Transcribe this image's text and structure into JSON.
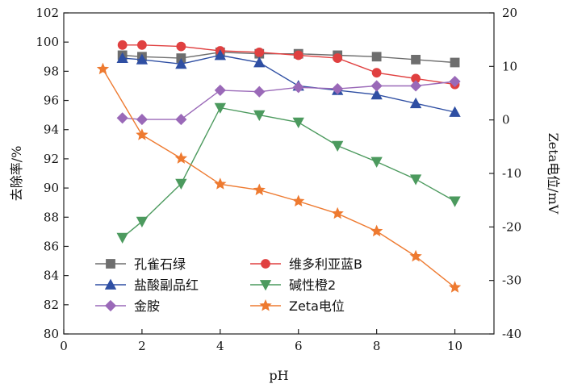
{
  "chart_data": {
    "type": "line",
    "title": "",
    "xlabel": "pH",
    "ylabel": "去除率/%",
    "y2label": "Zeta电位/mV",
    "xlim": [
      0,
      11
    ],
    "ylim": [
      80,
      102
    ],
    "y2lim": [
      -40,
      20
    ],
    "xticks": [
      "0",
      "2",
      "4",
      "6",
      "8",
      "10"
    ],
    "yticks": [
      "80",
      "82",
      "84",
      "86",
      "88",
      "90",
      "92",
      "94",
      "96",
      "98",
      "100",
      "102"
    ],
    "y2ticks": [
      "-40",
      "-30",
      "-20",
      "-10",
      "0",
      "10",
      "20"
    ],
    "grid": false,
    "legend_position": "lower-left",
    "series": [
      {
        "name": "孔雀石绿",
        "axis": "left",
        "color": "#6e6e6e",
        "marker": "square",
        "x": [
          1.5,
          2,
          3,
          4,
          5,
          6,
          7,
          8,
          9,
          10
        ],
        "y": [
          99.1,
          99.0,
          98.9,
          99.3,
          99.2,
          99.2,
          99.1,
          99.0,
          98.8,
          98.6
        ]
      },
      {
        "name": "维多利亚蓝B",
        "axis": "left",
        "color": "#e04040",
        "marker": "circle",
        "x": [
          1.5,
          2,
          3,
          4,
          5,
          6,
          7,
          8,
          9,
          10
        ],
        "y": [
          99.8,
          99.8,
          99.7,
          99.4,
          99.3,
          99.1,
          98.9,
          97.9,
          97.5,
          97.1
        ]
      },
      {
        "name": "盐酸副品红",
        "axis": "left",
        "color": "#2f4fa3",
        "marker": "triangle-up",
        "x": [
          1.5,
          2,
          3,
          4,
          5,
          6,
          7,
          8,
          9,
          10
        ],
        "y": [
          98.9,
          98.8,
          98.5,
          99.1,
          98.6,
          97.0,
          96.7,
          96.4,
          95.8,
          95.2
        ]
      },
      {
        "name": "碱性橙2",
        "axis": "left",
        "color": "#4c9a5e",
        "marker": "triangle-down",
        "x": [
          1.5,
          2,
          3,
          4,
          5,
          6,
          7,
          8,
          9,
          10
        ],
        "y": [
          86.6,
          87.7,
          90.3,
          95.5,
          95.0,
          94.5,
          92.9,
          91.8,
          90.6,
          89.1
        ]
      },
      {
        "name": "金胺",
        "axis": "left",
        "color": "#9a69b8",
        "marker": "diamond",
        "x": [
          1.5,
          2,
          3,
          4,
          5,
          6,
          7,
          8,
          9,
          10
        ],
        "y": [
          94.8,
          94.7,
          94.7,
          96.7,
          96.6,
          96.9,
          96.8,
          97.0,
          97.0,
          97.3
        ]
      },
      {
        "name": "Zeta电位",
        "axis": "right",
        "color": "#ee7a30",
        "marker": "star",
        "x": [
          1,
          2,
          3,
          4,
          5,
          6,
          7,
          8,
          9,
          10
        ],
        "y": [
          9.5,
          -2.8,
          -7.2,
          -12.0,
          -13.1,
          -15.2,
          -17.5,
          -20.8,
          -25.5,
          -31.3
        ]
      }
    ]
  }
}
